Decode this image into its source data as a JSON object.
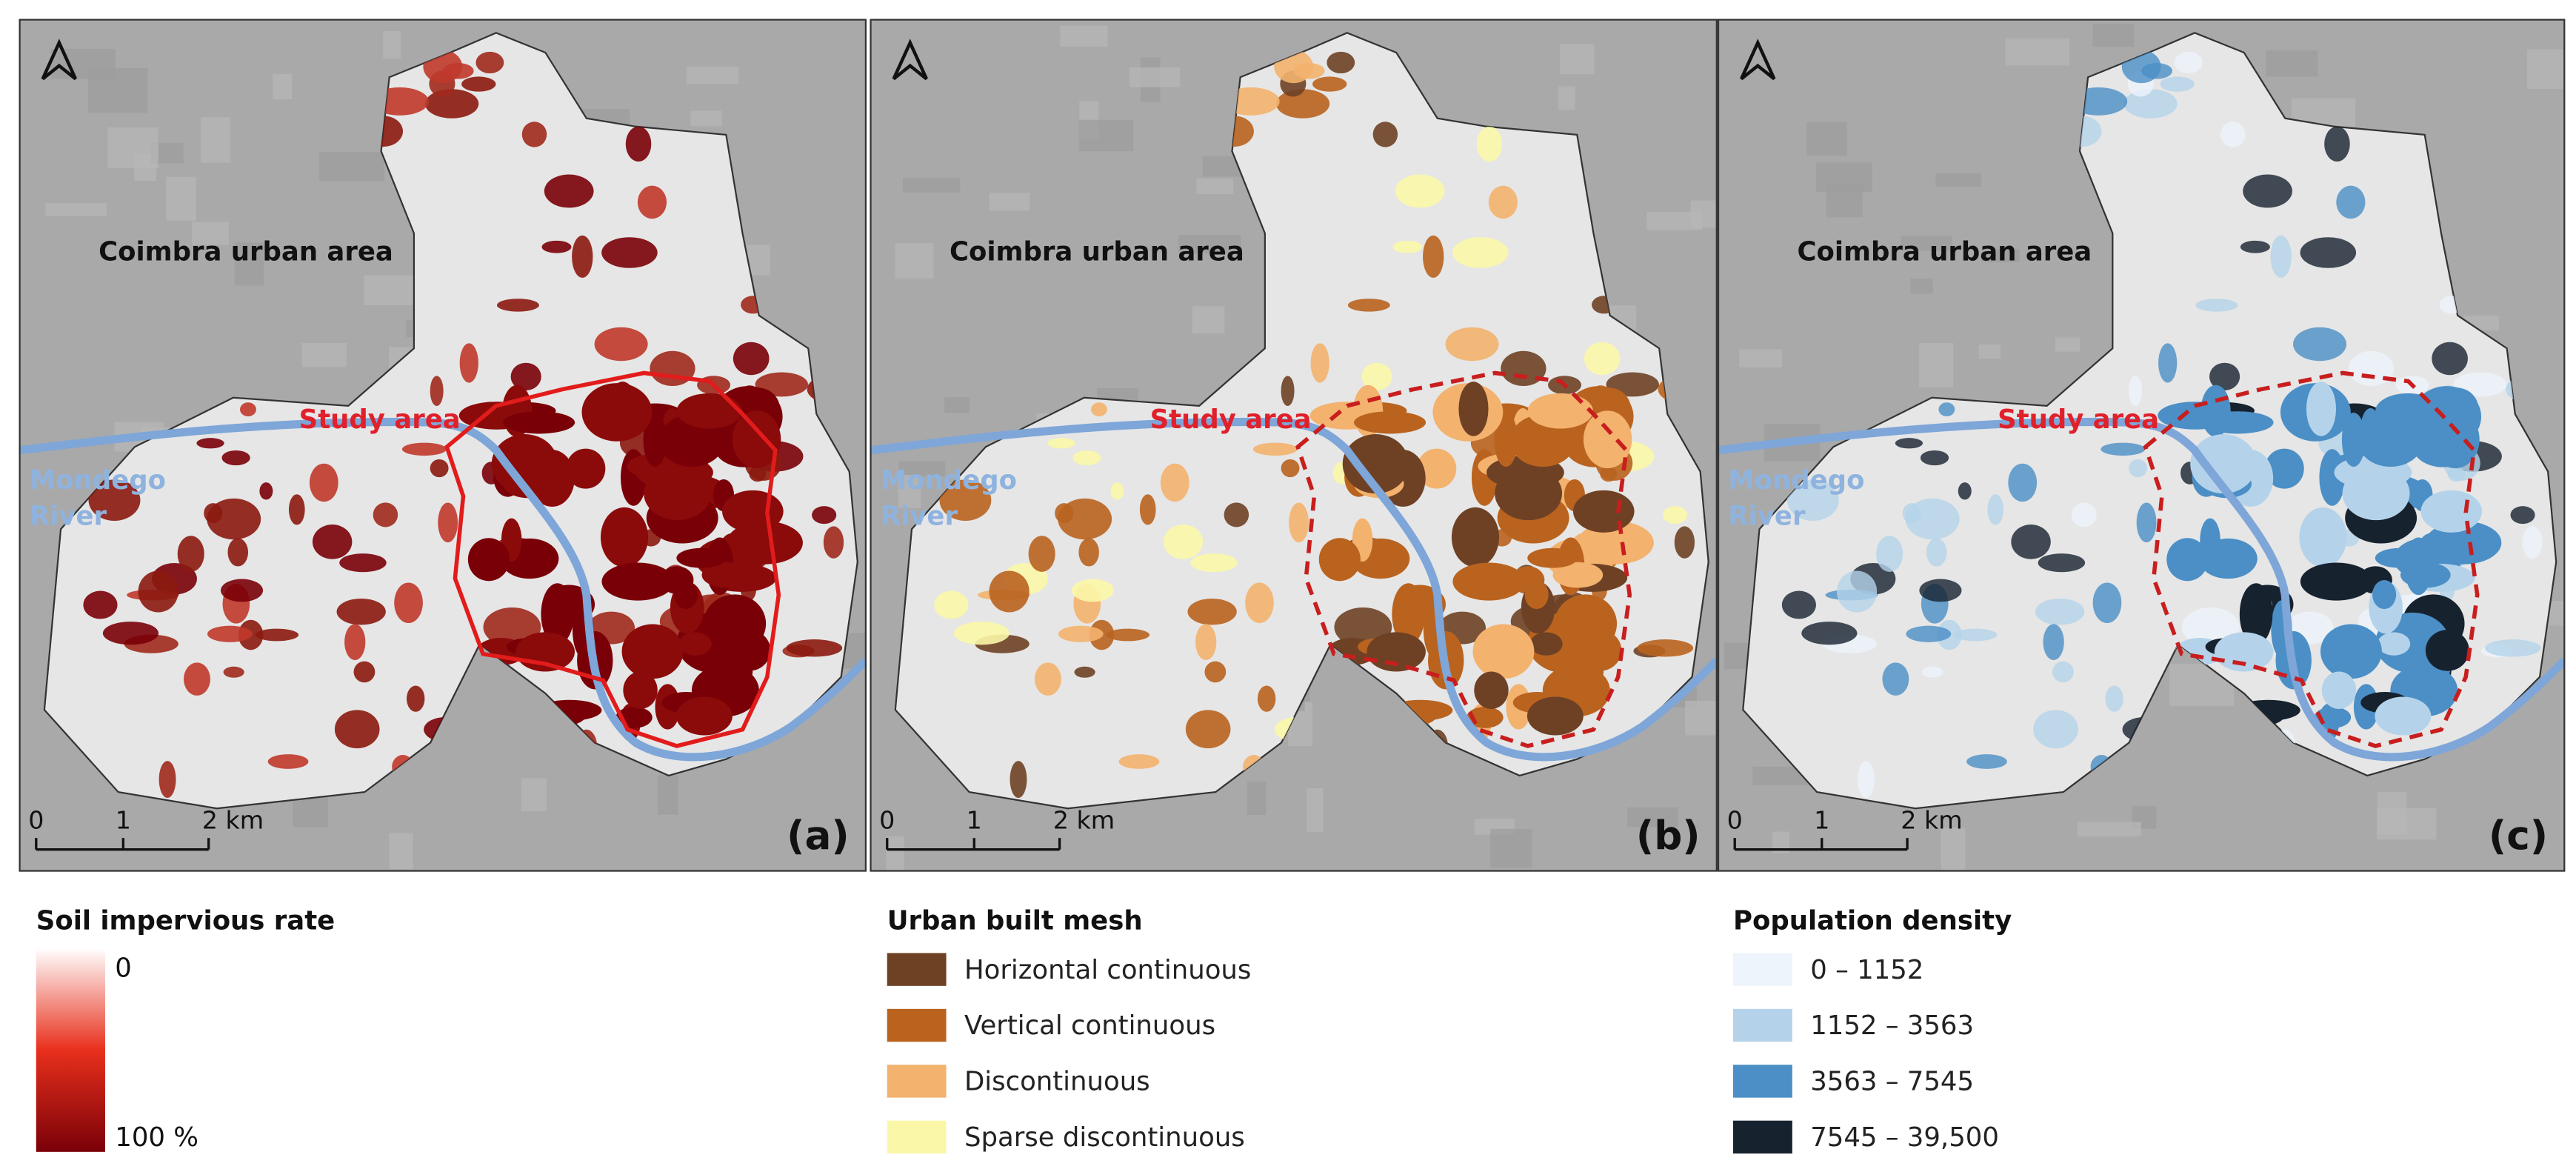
{
  "panels": [
    {
      "label": "(a)",
      "urban_area_label": "Coimbra urban area",
      "study_area_label": "Study area",
      "river_label": [
        "Mondego",
        "River"
      ],
      "scale_labels": [
        "0",
        "1",
        "2 km"
      ]
    },
    {
      "label": "(b)",
      "urban_area_label": "Coimbra urban area",
      "study_area_label": "Study area",
      "river_label": [
        "Mondego",
        "River"
      ],
      "scale_labels": [
        "0",
        "1",
        "2 km"
      ]
    },
    {
      "label": "(c)",
      "urban_area_label": "Coimbra urban area",
      "study_area_label": "Study area",
      "river_label": [
        "Mondego",
        "River"
      ],
      "scale_labels": [
        "0",
        "1",
        "2 km"
      ]
    }
  ],
  "legends": [
    {
      "title": "Soil impervious rate",
      "min_label": "0",
      "max_label": "100 %",
      "colors": [
        "#ffffff",
        "#e8301c",
        "#7a0008"
      ]
    },
    {
      "title": "Urban built mesh",
      "items": [
        {
          "name": "Horizontal continuous",
          "color": "#6e4125"
        },
        {
          "name": "Vertical continuous",
          "color": "#b9631f"
        },
        {
          "name": "Discontinuous",
          "color": "#f3b26e"
        },
        {
          "name": "Sparse discontinuous",
          "color": "#fbf7a8"
        }
      ]
    },
    {
      "title": "Population density",
      "items": [
        {
          "name": "0 – 1152",
          "color": "#eef4fb"
        },
        {
          "name": "1152 – 3563",
          "color": "#b4d3ea"
        },
        {
          "name": "3563 – 7545",
          "color": "#4b8fc6"
        },
        {
          "name": "7545 – 39,500",
          "color": "#17222f"
        }
      ]
    }
  ]
}
